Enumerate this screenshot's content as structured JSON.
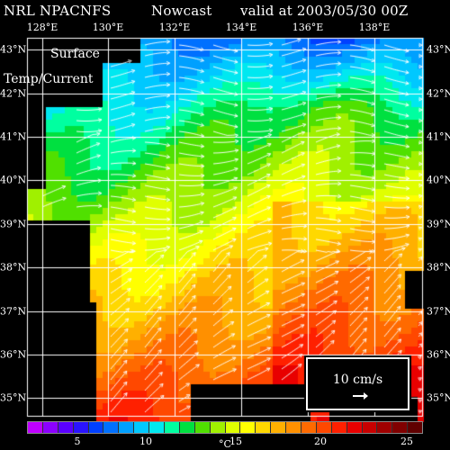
{
  "header": {
    "model": "NRL NPACNFS",
    "product": "Nowcast",
    "valid": "valid at 2003/05/30 00Z"
  },
  "overlay": {
    "line1": "Surface",
    "line2": "Temp/Current"
  },
  "lon_labels": [
    "128°E",
    "130°E",
    "132°E",
    "134°E",
    "136°E",
    "138°E"
  ],
  "lat_labels": [
    "43°N",
    "42°N",
    "41°N",
    "40°N",
    "39°N",
    "38°N",
    "37°N",
    "36°N",
    "35°N"
  ],
  "scale": {
    "label": "10 cm/s"
  },
  "colorbar": {
    "ticks": [
      "5",
      "10",
      "15",
      "20",
      "25"
    ],
    "unit": "°C",
    "colors": [
      "#c000ff",
      "#8c00ff",
      "#5a00ff",
      "#2a14ff",
      "#0040ff",
      "#0070ff",
      "#00a0ff",
      "#00c8ff",
      "#00e8f0",
      "#00ffa0",
      "#00e040",
      "#50e000",
      "#a0f000",
      "#e0ff00",
      "#ffff00",
      "#ffd800",
      "#ffb000",
      "#ff9000",
      "#ff6a00",
      "#ff4800",
      "#ff2000",
      "#e80000",
      "#c80000",
      "#a00000",
      "#800000",
      "#600000"
    ]
  }
}
